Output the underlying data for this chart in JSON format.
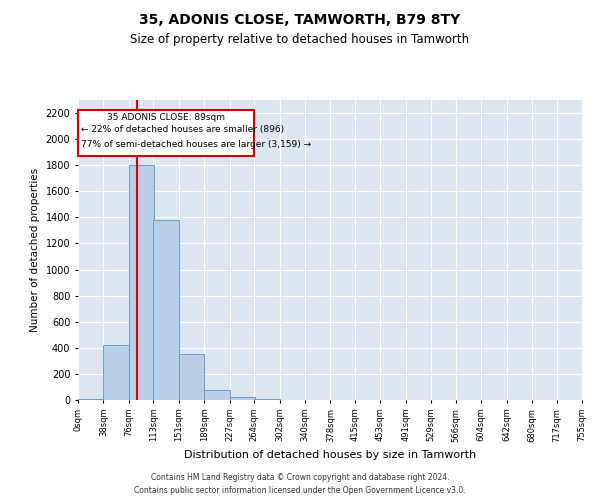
{
  "title": "35, ADONIS CLOSE, TAMWORTH, B79 8TY",
  "subtitle": "Size of property relative to detached houses in Tamworth",
  "xlabel": "Distribution of detached houses by size in Tamworth",
  "ylabel": "Number of detached properties",
  "bin_edges": [
    0,
    38,
    76,
    113,
    151,
    189,
    227,
    264,
    302,
    340,
    378,
    415,
    453,
    491,
    529,
    566,
    604,
    642,
    680,
    717,
    755
  ],
  "bin_labels": [
    "0sqm",
    "38sqm",
    "76sqm",
    "113sqm",
    "151sqm",
    "189sqm",
    "227sqm",
    "264sqm",
    "302sqm",
    "340sqm",
    "378sqm",
    "415sqm",
    "453sqm",
    "491sqm",
    "529sqm",
    "566sqm",
    "604sqm",
    "642sqm",
    "680sqm",
    "717sqm",
    "755sqm"
  ],
  "bar_heights": [
    5,
    420,
    1800,
    1380,
    350,
    75,
    25,
    8,
    0,
    0,
    0,
    0,
    0,
    0,
    0,
    0,
    0,
    0,
    0,
    0
  ],
  "bar_color": "#b8cfe8",
  "bar_edge_color": "#6a9ec5",
  "vline_x": 89,
  "vline_color": "#cc0000",
  "ylim": [
    0,
    2300
  ],
  "yticks": [
    0,
    200,
    400,
    600,
    800,
    1000,
    1200,
    1400,
    1600,
    1800,
    2000,
    2200
  ],
  "annotation_line1": "35 ADONIS CLOSE: 89sqm",
  "annotation_line2": "← 22% of detached houses are smaller (896)",
  "annotation_line3": "77% of semi-detached houses are larger (3,159) →",
  "annotation_box_color": "#cc0000",
  "bg_color": "#dce6f0",
  "grid_color": "#ffffff",
  "footer_line1": "Contains HM Land Registry data © Crown copyright and database right 2024.",
  "footer_line2": "Contains public sector information licensed under the Open Government Licence v3.0."
}
